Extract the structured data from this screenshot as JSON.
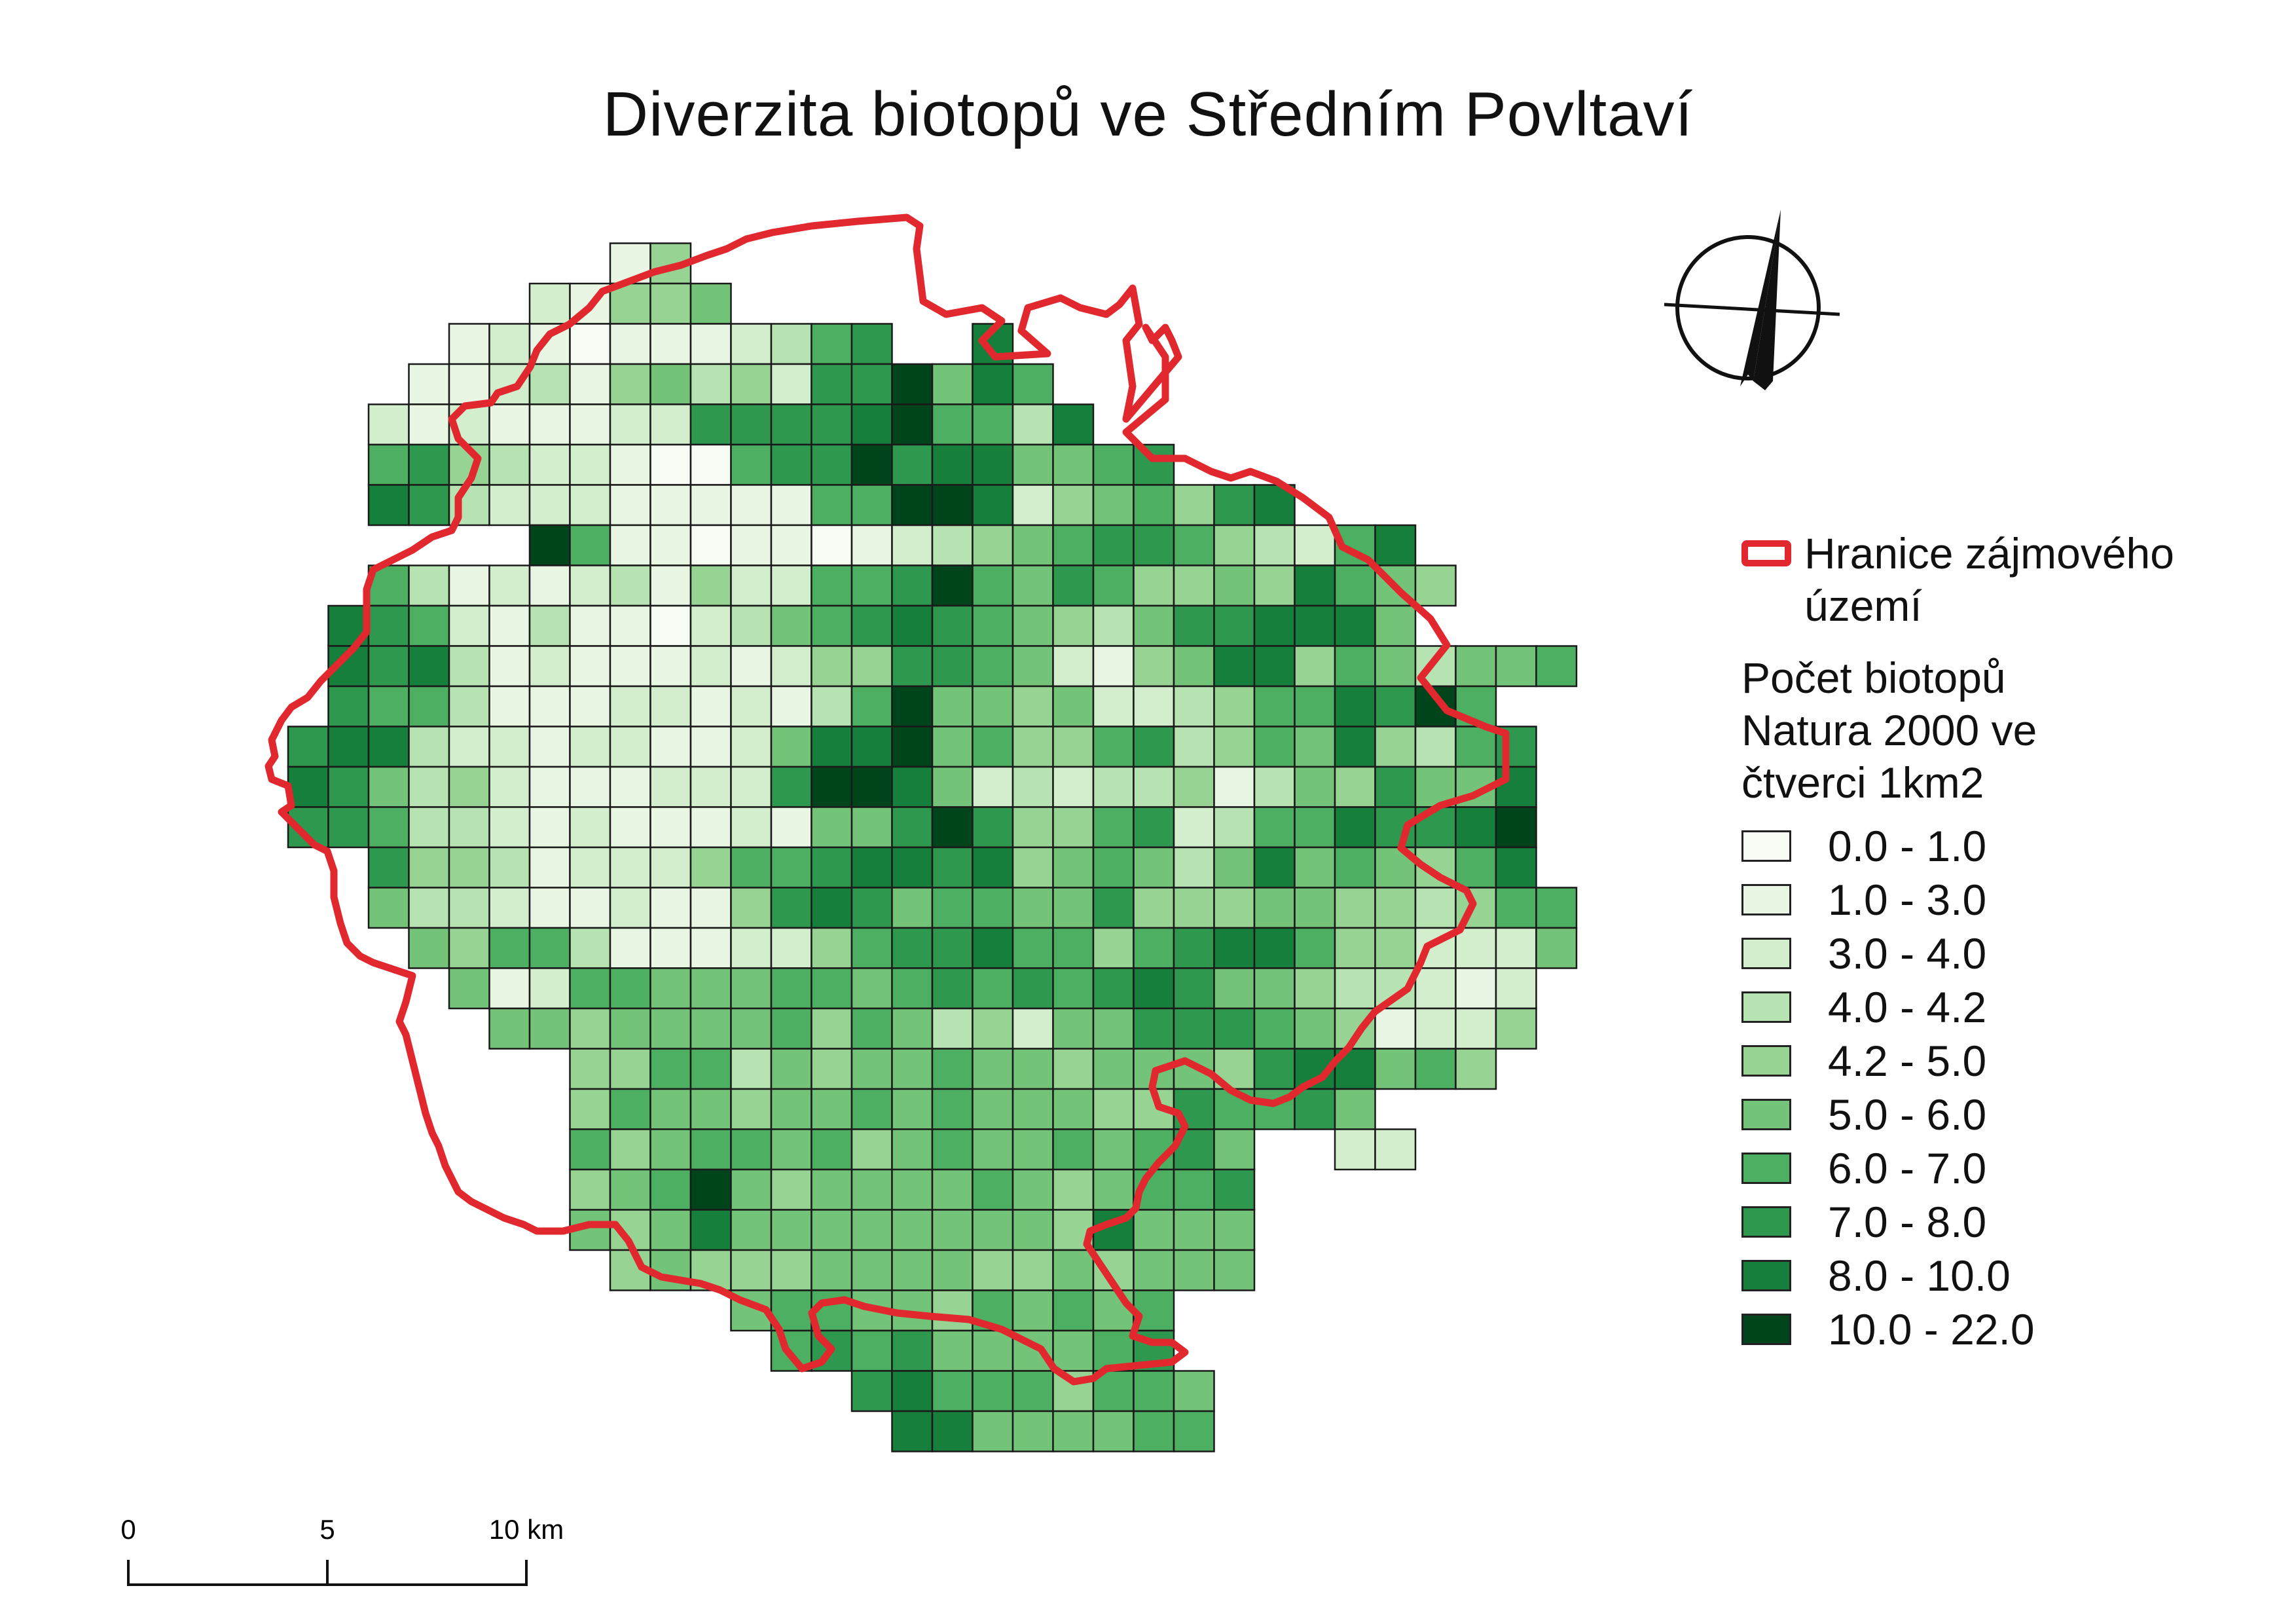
{
  "title": "Diverzita biotopů ve Středním Povltaví",
  "legend": {
    "border_label": "Hranice zájmového území",
    "heading": "Počet biotopů Natura 2000 ve čtverci 1km2",
    "classes": [
      {
        "label": "0.0 - 1.0",
        "color": "#f7fcf5"
      },
      {
        "label": "1.0 - 3.0",
        "color": "#e8f6e3"
      },
      {
        "label": "3.0 - 4.0",
        "color": "#d3eecd"
      },
      {
        "label": "4.0 - 4.2",
        "color": "#b7e2b1"
      },
      {
        "label": "4.2 - 5.0",
        "color": "#97d494"
      },
      {
        "label": "5.0 - 6.0",
        "color": "#73c378"
      },
      {
        "label": "6.0 - 7.0",
        "color": "#4daf62"
      },
      {
        "label": "7.0 - 8.0",
        "color": "#2f984f"
      },
      {
        "label": "8.0 - 10.0",
        "color": "#157f3b"
      },
      {
        "label": "10.0 - 22.0",
        "color": "#00441b"
      }
    ]
  },
  "boundary_color": "#e0282e",
  "scale_bar": {
    "labels": [
      "0",
      "5",
      "10 km"
    ]
  },
  "icons": {
    "north_arrow": "north-arrow-icon"
  },
  "map_grid": {
    "cell_size_km": 1,
    "rows": [
      "........*...",
      "........14.",
      "......21445",
      "....12101112367..8",
      "...1123145342779586",
      "..212111227777896638",
      "..67432210067797885567",
      "..87322211111669982456478",
      "......9611011012345677643268",
      "..631212314226679657644548654",
      ".876213110235678765435778885",
      ".8783121112124477652145884653556",
      ".76631112212136955452234668796",
      "7883221221125889564467346584367",
      "8753421112227998523233413547558",
      "7763321211121557974467236687789",
      "..74431222466788784565358565468",
      "..533211211478756655744455443466",
      "...54663111224677866467886442225",
      "....512665556656767678755433212",
      ".....55455556465342557776541224",
      ".......44663545565545554788564",
      ".......46554556565554476675",
      ".......64566564565565675..22",
      ".......45695455556545667...",
      ".......54585555555548555",
      "........4544455554454555",
      "...........56655465656",
      "............6767555567",
      "..............786664665",
      "...............88555566",
      "..........................."
    ]
  }
}
